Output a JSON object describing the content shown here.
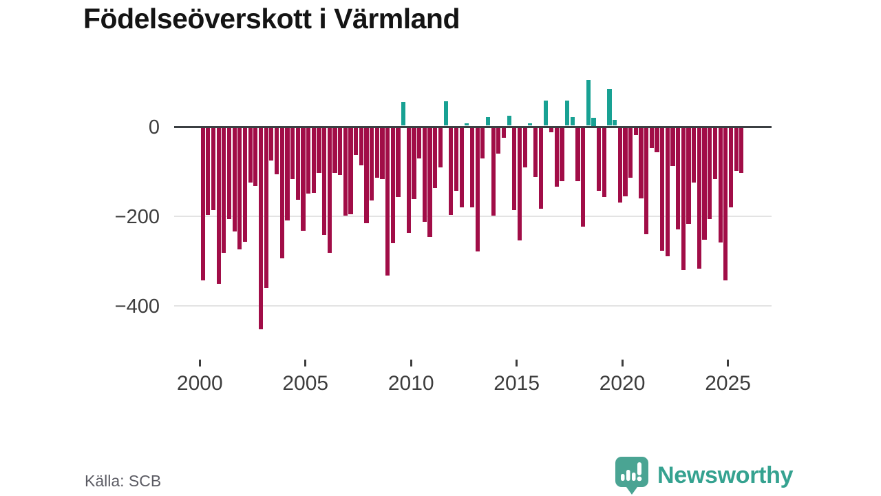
{
  "title": "Födelseöverskott i Värmland",
  "source": "Källa: SCB",
  "logo": {
    "text": "Newsworthy",
    "icon": "newsworthy-speech-bubble-chart-icon"
  },
  "chart_data": {
    "type": "bar",
    "title": "Födelseöverskott i Värmland",
    "x_unit": "quarter",
    "start_quarter": "2000-Q1",
    "end_quarter": "2025-Q3",
    "x_tick_years": [
      2000,
      2005,
      2010,
      2015,
      2020,
      2025
    ],
    "y_ticks": [
      0,
      -200,
      -400
    ],
    "y_tick_labels": [
      "0",
      "−200",
      "−400"
    ],
    "ylim": [
      -470,
      120
    ],
    "grid": true,
    "legend": false,
    "colors": {
      "negative": "#a10d47",
      "positive": "#18a193",
      "axis": "#3b3f42",
      "gridline": "#e3e3e3"
    },
    "values": [
      -340,
      -194,
      -184,
      -348,
      -279,
      -204,
      -232,
      -271,
      -255,
      -122,
      -130,
      -450,
      -358,
      -73,
      -104,
      -291,
      -207,
      -114,
      -160,
      -230,
      -147,
      -145,
      -101,
      -239,
      -279,
      -101,
      -105,
      -196,
      -193,
      -60,
      -83,
      -213,
      -162,
      -111,
      -114,
      -330,
      -258,
      -155,
      56,
      -234,
      -159,
      -68,
      -209,
      -243,
      -135,
      -88,
      57,
      -194,
      -140,
      -178,
      7,
      -178,
      -276,
      -68,
      22,
      -196,
      -57,
      -22,
      25,
      -184,
      -252,
      -89,
      8,
      -110,
      -181,
      58,
      -10,
      -131,
      -119,
      58,
      22,
      -119,
      -220,
      105,
      20,
      -140,
      -155,
      85,
      16,
      -166,
      -153,
      -112,
      -16,
      -158,
      -238,
      -45,
      -55,
      -274,
      -286,
      -86,
      -227,
      -317,
      -214,
      -122,
      -315,
      -250,
      -204,
      -114,
      -256,
      -340,
      -178,
      -96,
      -100
    ]
  }
}
